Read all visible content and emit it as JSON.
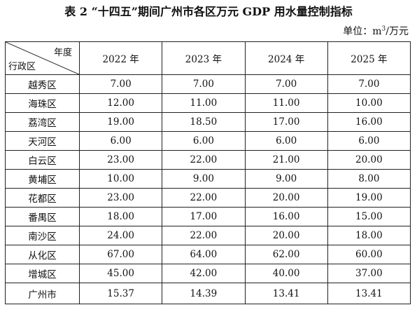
{
  "title": "表 2 “十四五”期间广州市各区万元 GDP 用水量控制指标",
  "unit": {
    "prefix": "单位：m",
    "sup": "3",
    "suffix": "/万元"
  },
  "header": {
    "corner_top": "年度",
    "corner_bottom": "行政区",
    "years": [
      "2022 年",
      "2023 年",
      "2024 年",
      "2025 年"
    ]
  },
  "rows": [
    {
      "district": "越秀区",
      "values": [
        "7.00",
        "7.00",
        "7.00",
        "7.00"
      ]
    },
    {
      "district": "海珠区",
      "values": [
        "12.00",
        "11.00",
        "11.00",
        "10.00"
      ]
    },
    {
      "district": "荔湾区",
      "values": [
        "19.00",
        "18.50",
        "17.00",
        "16.00"
      ]
    },
    {
      "district": "天河区",
      "values": [
        "6.00",
        "6.00",
        "6.00",
        "6.00"
      ]
    },
    {
      "district": "白云区",
      "values": [
        "23.00",
        "22.00",
        "21.00",
        "20.00"
      ]
    },
    {
      "district": "黄埔区",
      "values": [
        "10.00",
        "9.00",
        "9.00",
        "8.00"
      ]
    },
    {
      "district": "花都区",
      "values": [
        "23.00",
        "22.00",
        "20.00",
        "19.00"
      ]
    },
    {
      "district": "番禺区",
      "values": [
        "18.00",
        "17.00",
        "16.00",
        "15.00"
      ]
    },
    {
      "district": "南沙区",
      "values": [
        "24.00",
        "22.00",
        "20.00",
        "18.00"
      ]
    },
    {
      "district": "从化区",
      "values": [
        "67.00",
        "64.00",
        "62.00",
        "60.00"
      ]
    },
    {
      "district": "增城区",
      "values": [
        "45.00",
        "42.00",
        "40.00",
        "37.00"
      ]
    },
    {
      "district": "广州市",
      "values": [
        "15.37",
        "14.39",
        "13.41",
        "13.41"
      ]
    }
  ]
}
